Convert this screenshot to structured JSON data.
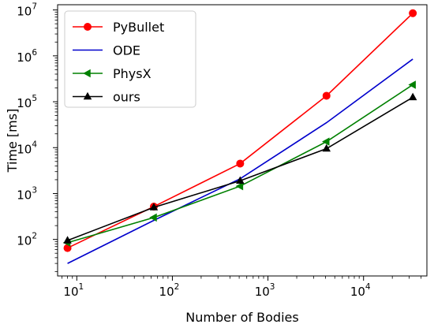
{
  "chart_data": {
    "type": "line",
    "title": "",
    "xlabel": "Number of Bodies",
    "ylabel": "Time [ms]",
    "xscale": "log",
    "yscale": "log",
    "xlim": [
      6.3,
      46000
    ],
    "ylim": [
      16,
      13000000
    ],
    "x_ticks": [
      {
        "value": 10,
        "base": "10",
        "exp": "1"
      },
      {
        "value": 100,
        "base": "10",
        "exp": "2"
      },
      {
        "value": 1000,
        "base": "10",
        "exp": "3"
      },
      {
        "value": 10000,
        "base": "10",
        "exp": "4"
      }
    ],
    "y_ticks": [
      {
        "value": 100,
        "base": "10",
        "exp": "2"
      },
      {
        "value": 1000,
        "base": "10",
        "exp": "3"
      },
      {
        "value": 10000,
        "base": "10",
        "exp": "4"
      },
      {
        "value": 100000,
        "base": "10",
        "exp": "5"
      },
      {
        "value": 1000000,
        "base": "10",
        "exp": "6"
      },
      {
        "value": 10000000,
        "base": "10",
        "exp": "7"
      }
    ],
    "grid": false,
    "legend_position": "top-left",
    "series": [
      {
        "name": "PyBullet",
        "color": "#ff0000",
        "marker": "circle",
        "x": [
          8,
          64,
          512,
          4096,
          32768
        ],
        "y": [
          65,
          520,
          4500,
          135000,
          8500000
        ]
      },
      {
        "name": "ODE",
        "color": "#0000cc",
        "marker": "none",
        "x": [
          8,
          64,
          512,
          4096,
          32768
        ],
        "y": [
          30,
          260,
          2100,
          35000,
          850000
        ]
      },
      {
        "name": "PhysX",
        "color": "#008000",
        "marker": "triangle-left",
        "x": [
          8,
          64,
          512,
          4096,
          32768
        ],
        "y": [
          85,
          300,
          1450,
          13500,
          235000
        ]
      },
      {
        "name": "ours",
        "color": "#000000",
        "marker": "triangle-up",
        "x": [
          8,
          64,
          512,
          4096,
          32768
        ],
        "y": [
          95,
          500,
          1900,
          9500,
          125000
        ]
      }
    ]
  }
}
